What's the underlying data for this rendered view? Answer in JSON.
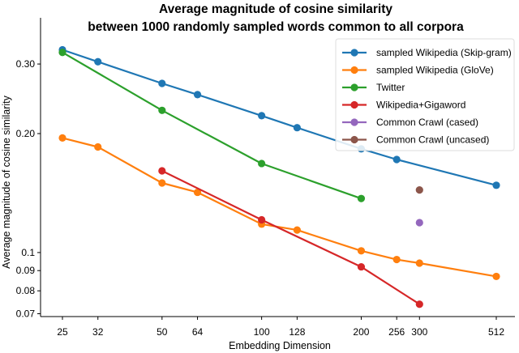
{
  "chart_data": {
    "type": "line",
    "title": "Average magnitude of cosine similarity",
    "subtitle": "between 1000 randomly sampled words common to all corpora",
    "xlabel": "Embedding Dimension",
    "ylabel": "Average magnitude of cosine similarity",
    "xscale": "log",
    "yscale": "log",
    "xticks": [
      25,
      32,
      50,
      64,
      100,
      128,
      200,
      256,
      300,
      512
    ],
    "xtick_labels": [
      "25",
      "32",
      "50",
      "64",
      "100",
      "128",
      "200",
      "256",
      "300",
      "512"
    ],
    "yticks": [
      0.07,
      0.08,
      0.09,
      0.1,
      0.2,
      0.3
    ],
    "ytick_labels": [
      "0.07",
      "0.08",
      "0.09",
      "0.1",
      "0.20",
      "0.30"
    ],
    "ylim": [
      0.07,
      0.345
    ],
    "grid": false,
    "legend_position": "upper right",
    "series": [
      {
        "name": "sampled Wikipedia (Skip-gram)",
        "color": "#1f77b4",
        "x": [
          25,
          32,
          50,
          64,
          100,
          128,
          200,
          256,
          512
        ],
        "values": [
          0.326,
          0.304,
          0.268,
          0.251,
          0.222,
          0.207,
          0.183,
          0.172,
          0.148
        ]
      },
      {
        "name": "sampled Wikipedia (GloVe)",
        "color": "#ff7f0e",
        "x": [
          25,
          32,
          50,
          64,
          100,
          128,
          200,
          256,
          300,
          512
        ],
        "values": [
          0.195,
          0.185,
          0.15,
          0.142,
          0.118,
          0.114,
          0.101,
          0.096,
          0.094,
          0.087
        ]
      },
      {
        "name": "Twitter",
        "color": "#2ca02c",
        "x": [
          25,
          50,
          100,
          200
        ],
        "values": [
          0.321,
          0.229,
          0.168,
          0.137
        ]
      },
      {
        "name": "Wikipedia+Gigaword",
        "color": "#d62728",
        "x": [
          50,
          100,
          200,
          300
        ],
        "values": [
          0.161,
          0.121,
          0.092,
          0.074
        ]
      },
      {
        "name": "Common Crawl (cased)",
        "color": "#9467bd",
        "x": [
          300
        ],
        "values": [
          0.119
        ]
      },
      {
        "name": "Common Crawl (uncased)",
        "color": "#8c564b",
        "x": [
          300
        ],
        "values": [
          0.144
        ]
      }
    ]
  }
}
